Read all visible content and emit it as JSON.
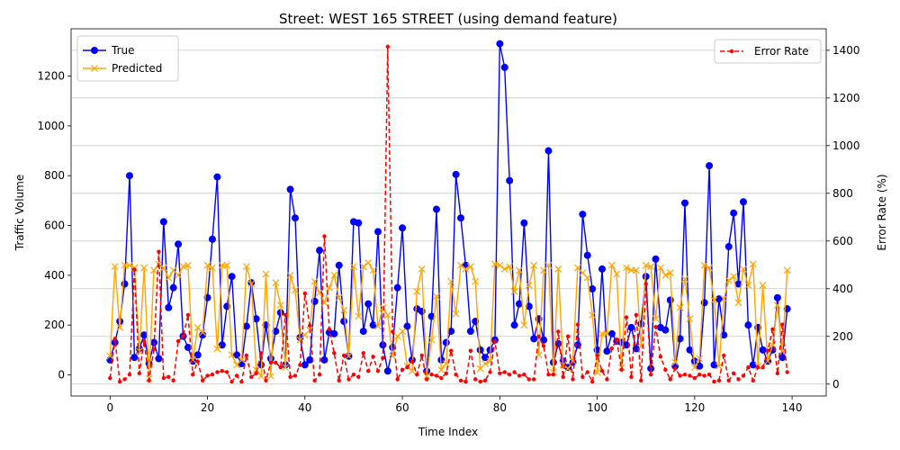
{
  "chart_data": {
    "type": "line",
    "title": "Street: WEST 165 STREET (using demand feature)",
    "xlabel": "Time Index",
    "ylabel": "Traffic Volume",
    "y2label": "Error Rate (%)",
    "xlim": [
      -8,
      147
    ],
    "ylim": [
      -85,
      1390
    ],
    "y2lim": [
      -50,
      1490
    ],
    "xticks": [
      0,
      20,
      40,
      60,
      80,
      100,
      120,
      140
    ],
    "yticks": [
      0,
      200,
      400,
      600,
      800,
      1000,
      1200
    ],
    "y2ticks": [
      0,
      200,
      400,
      600,
      800,
      1000,
      1200,
      1400
    ],
    "legend_left_position": "upper-left",
    "legend_right_position": "upper-right",
    "series": [
      {
        "name": "True",
        "axis": "left",
        "color": "#0000ff",
        "marker": "circle",
        "values": [
          60,
          130,
          215,
          365,
          800,
          70,
          105,
          160,
          45,
          130,
          65,
          615,
          270,
          350,
          525,
          155,
          110,
          55,
          80,
          160,
          310,
          545,
          795,
          120,
          275,
          395,
          80,
          45,
          195,
          370,
          225,
          40,
          200,
          65,
          175,
          250,
          40,
          745,
          630,
          150,
          40,
          60,
          295,
          500,
          60,
          170,
          165,
          440,
          215,
          75,
          615,
          610,
          175,
          285,
          200,
          575,
          120,
          15,
          110,
          350,
          590,
          195,
          60,
          265,
          255,
          15,
          235,
          665,
          60,
          130,
          175,
          805,
          630,
          440,
          175,
          215,
          100,
          70,
          100,
          140,
          1330,
          1235,
          780,
          200,
          285,
          610,
          275,
          145,
          225,
          140,
          900,
          50,
          125,
          55,
          30,
          50,
          120,
          645,
          480,
          345,
          100,
          425,
          95,
          165,
          135,
          130,
          120,
          190,
          105,
          205,
          395,
          25,
          465,
          190,
          180,
          300,
          35,
          145,
          690,
          100,
          55,
          35,
          290,
          840,
          40,
          305,
          160,
          515,
          650,
          365,
          695,
          200,
          40,
          190,
          100,
          55,
          100,
          310,
          70,
          265
        ]
      },
      {
        "name": "Predicted",
        "axis": "left",
        "color": "#ffa500",
        "marker": "x",
        "values": [
          75,
          435,
          190,
          440,
          440,
          430,
          95,
          430,
          -15,
          420,
          445,
          430,
          390,
          420,
          400,
          435,
          440,
          60,
          190,
          170,
          440,
          430,
          105,
          440,
          440,
          80,
          40,
          60,
          435,
          365,
          20,
          -5,
          405,
          -5,
          370,
          280,
          30,
          400,
          340,
          140,
          160,
          180,
          375,
          330,
          290,
          350,
          400,
          310,
          260,
          75,
          435,
          235,
          435,
          450,
          420,
          195,
          270,
          240,
          75,
          155,
          175,
          35,
          15,
          335,
          425,
          -5,
          140,
          315,
          20,
          45,
          375,
          245,
          440,
          425,
          435,
          375,
          25,
          45,
          55,
          445,
          440,
          425,
          435,
          335,
          420,
          200,
          360,
          440,
          80,
          420,
          440,
          10,
          425,
          40,
          25,
          55,
          430,
          410,
          390,
          240,
          10,
          165,
          165,
          440,
          405,
          30,
          430,
          420,
          420,
          115,
          440,
          435,
          225,
          430,
          400,
          410,
          50,
          270,
          385,
          225,
          30,
          65,
          440,
          430,
          300,
          35,
          305,
          380,
          395,
          290,
          425,
          360,
          445,
          35,
          360,
          55,
          120,
          280,
          95,
          420
        ]
      },
      {
        "name": "Error Rate",
        "axis": "right",
        "color": "#ff0000",
        "marker": "dot",
        "values": [
          25,
          190,
          10,
          20,
          40,
          480,
          45,
          180,
          15,
          145,
          555,
          25,
          30,
          15,
          180,
          200,
          290,
          40,
          95,
          15,
          35,
          40,
          50,
          55,
          50,
          10,
          35,
          10,
          120,
          30,
          45,
          130,
          15,
          90,
          90,
          70,
          290,
          30,
          35,
          80,
          380,
          245,
          15,
          40,
          620,
          230,
          130,
          15,
          120,
          20,
          40,
          30,
          130,
          55,
          115,
          55,
          110,
          1415,
          220,
          20,
          60,
          70,
          95,
          40,
          120,
          20,
          40,
          35,
          25,
          45,
          140,
          40,
          15,
          10,
          140,
          20,
          10,
          15,
          50,
          180,
          45,
          50,
          40,
          50,
          35,
          40,
          20,
          20,
          200,
          160,
          40,
          40,
          220,
          30,
          200,
          20,
          250,
          30,
          50,
          10,
          120,
          55,
          20,
          150,
          185,
          60,
          280,
          30,
          290,
          15,
          420,
          40,
          240,
          115,
          60,
          20,
          65,
          35,
          40,
          35,
          25,
          40,
          35,
          40,
          10,
          15,
          120,
          15,
          45,
          20,
          35,
          70,
          15,
          70,
          70,
          140,
          230,
          45,
          250,
          50
        ]
      }
    ]
  }
}
